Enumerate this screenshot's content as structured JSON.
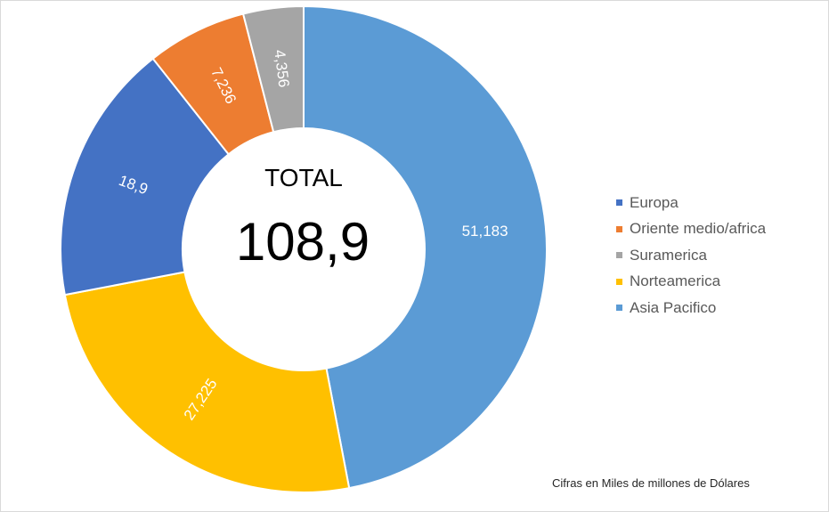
{
  "chart_data": {
    "type": "pie",
    "variant": "donut",
    "categories": [
      "Europa",
      "Oriente medio/africa",
      "Suramerica",
      "Norteamerica",
      "Asia Pacifico"
    ],
    "values": [
      18.9,
      7.236,
      4.356,
      27.225,
      51.183
    ],
    "data_labels": [
      "18,9",
      "7,236",
      "4,356",
      "27,225",
      "51,183"
    ],
    "colors": [
      "#4472c4",
      "#ed7d31",
      "#a5a5a5",
      "#ffc000",
      "#5b9bd5"
    ],
    "center_title": "TOTAL",
    "center_value": "108,9",
    "legend_position": "right",
    "start": "top, clockwise from Asia Pacifico",
    "footnote": "Cifras en Miles de millones de Dólares"
  }
}
